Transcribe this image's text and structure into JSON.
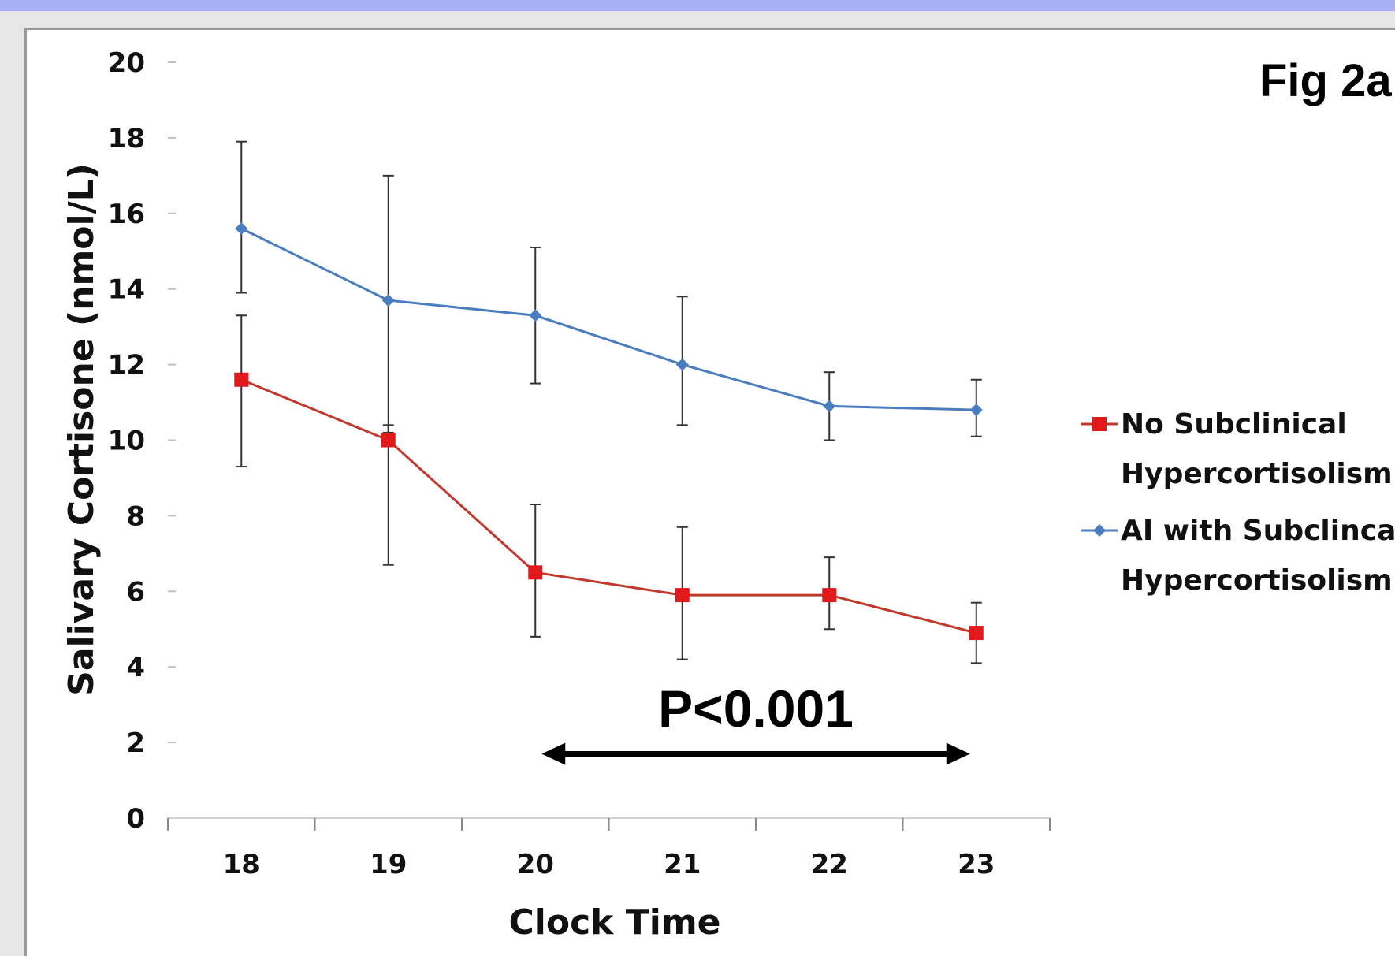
{
  "colors": {
    "series_red": "#e31a1c",
    "series_red_line": "#c0392b",
    "series_blue": "#4a7cc0",
    "error_bar": "#333333",
    "gridline": "#d9d9d9"
  },
  "chart_data": {
    "type": "line",
    "title": "Fig 2a",
    "xlabel": "Clock Time",
    "ylabel": "Salivary Cortisone (nmol/L)",
    "x": [
      18,
      19,
      20,
      21,
      22,
      23
    ],
    "ylim": [
      0,
      20
    ],
    "yticks": [
      0,
      2,
      4,
      6,
      8,
      10,
      12,
      14,
      16,
      18,
      20
    ],
    "xticks": [
      "18",
      "19",
      "20",
      "21",
      "22",
      "23"
    ],
    "grid": false,
    "legend_position": "right",
    "series": [
      {
        "name": "No Subclinical Hypercortisolism",
        "name_lines": [
          "No Subclinical",
          "Hypercortisolism"
        ],
        "marker": "square",
        "values": [
          11.6,
          10.0,
          6.5,
          5.9,
          5.9,
          4.9
        ],
        "error_low": [
          9.3,
          6.7,
          4.8,
          4.2,
          5.0,
          4.1
        ],
        "error_high": [
          13.3,
          10.4,
          8.3,
          7.7,
          6.9,
          5.7
        ]
      },
      {
        "name": "AI with Subclincal Hypercortisolism",
        "name_lines": [
          "AI with Subclincal",
          "Hypercortisolism"
        ],
        "marker": "diamond",
        "values": [
          15.6,
          13.7,
          13.3,
          12.0,
          10.9,
          10.8
        ],
        "error_low": [
          13.9,
          10.2,
          11.5,
          10.4,
          10.0,
          10.1
        ],
        "error_high": [
          17.9,
          17.0,
          15.1,
          13.8,
          11.8,
          11.6
        ]
      }
    ],
    "annotations": [
      {
        "text": "P<0.001",
        "x_from": 20,
        "x_to": 23,
        "y": 1.7
      }
    ]
  }
}
